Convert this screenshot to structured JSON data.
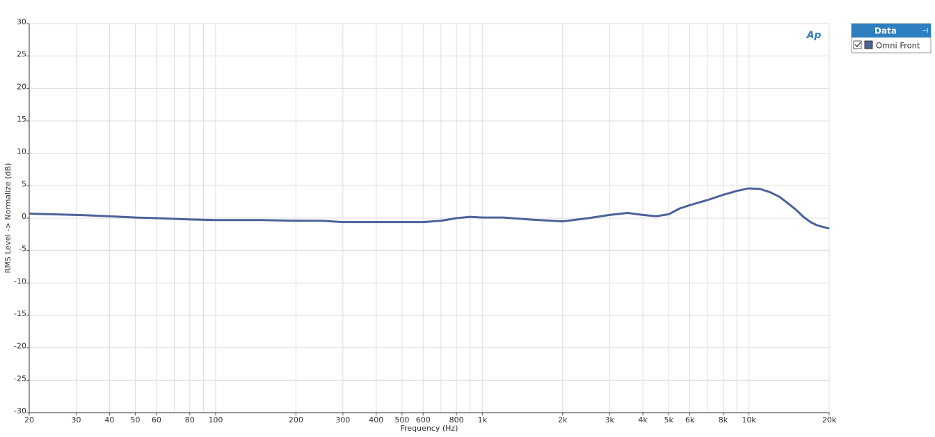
{
  "chart_data": {
    "type": "line",
    "logo": "Ap",
    "xlabel": "Frequency (Hz)",
    "ylabel": "RMS Level -> Normalize (dB)",
    "legend_title": "Data",
    "legend_position": "right",
    "x": [
      20,
      30,
      40,
      50,
      60,
      80,
      100,
      150,
      200,
      250,
      300,
      400,
      500,
      600,
      700,
      800,
      900,
      1000,
      1200,
      1500,
      2000,
      2500,
      3000,
      3500,
      4000,
      4500,
      5000,
      5500,
      6000,
      7000,
      8000,
      9000,
      10000,
      11000,
      12000,
      13000,
      14000,
      15000,
      16000,
      17000,
      18000,
      20000
    ],
    "series": [
      {
        "name": "Omni Front",
        "color": "#4b6199",
        "values": [
          0.7,
          0.5,
          0.3,
          0.1,
          0.0,
          -0.2,
          -0.3,
          -0.3,
          -0.4,
          -0.4,
          -0.6,
          -0.6,
          -0.6,
          -0.6,
          -0.4,
          0.0,
          0.2,
          0.1,
          0.1,
          -0.2,
          -0.5,
          0.0,
          0.5,
          0.8,
          0.5,
          0.3,
          0.6,
          1.5,
          2.0,
          2.8,
          3.6,
          4.2,
          4.6,
          4.5,
          4.0,
          3.3,
          2.3,
          1.3,
          0.2,
          -0.6,
          -1.1,
          -1.6
        ]
      }
    ],
    "xlim": [
      20,
      20000
    ],
    "xscale": "log",
    "xticks": [
      20,
      30,
      40,
      50,
      60,
      80,
      100,
      200,
      300,
      400,
      500,
      600,
      800,
      {
        "value": 1000,
        "label": "1k"
      },
      {
        "value": 2000,
        "label": "2k"
      },
      {
        "value": 3000,
        "label": "3k"
      },
      {
        "value": 4000,
        "label": "4k"
      },
      {
        "value": 5000,
        "label": "5k"
      },
      {
        "value": 6000,
        "label": "6k"
      },
      {
        "value": 8000,
        "label": "8k"
      },
      {
        "value": 10000,
        "label": "10k"
      },
      {
        "value": 20000,
        "label": "20k"
      }
    ],
    "minor_xticks": [
      70,
      90,
      700,
      900,
      7000,
      9000
    ],
    "ylim": [
      -30,
      30
    ],
    "yticks": [
      -30,
      -25,
      -20,
      -15,
      -10,
      -5,
      0,
      5,
      10,
      15,
      20,
      25,
      30
    ],
    "grid": true
  }
}
